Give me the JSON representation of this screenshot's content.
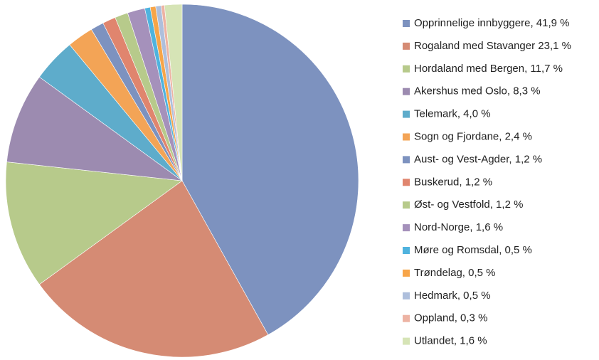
{
  "chart_data": {
    "type": "pie",
    "categories": [
      "Opprinnelige innbyggere, 41,9 %",
      "Rogaland med Stavanger 23,1 %",
      "Hordaland med Bergen, 11,7 %",
      "Akershus med Oslo, 8,3 %",
      "Telemark, 4,0 %",
      "Sogn og Fjordane, 2,4 %",
      "Aust- og Vest-Agder, 1,2 %",
      "Buskerud, 1,2 %",
      "Øst- og Vestfold, 1,2 %",
      "Nord-Norge, 1,6 %",
      "Møre og Romsdal, 0,5 %",
      "Trøndelag, 0,5 %",
      "Hedmark, 0,5 %",
      "Oppland, 0,3 %",
      "Utlandet, 1,6 %"
    ],
    "values": [
      41.9,
      23.1,
      11.7,
      8.3,
      4.0,
      2.4,
      1.2,
      1.2,
      1.2,
      1.6,
      0.5,
      0.5,
      0.5,
      0.3,
      1.6
    ],
    "colors": [
      "#7d92bf",
      "#d58b74",
      "#b7ca8b",
      "#9c8bb0",
      "#5eaccb",
      "#f3a456",
      "#7d92bf",
      "#e0856e",
      "#b7ca8b",
      "#a591bb",
      "#4fb3de",
      "#f7a549",
      "#aebfdc",
      "#edb3a3",
      "#d6e4b6"
    ],
    "legend": "right"
  }
}
